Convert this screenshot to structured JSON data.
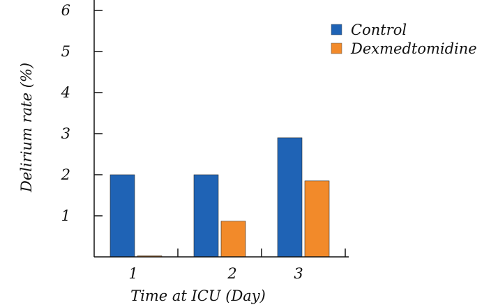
{
  "chart_data": {
    "type": "bar",
    "title": "",
    "xlabel": "Time at ICU (Day)",
    "ylabel": "Delirium rate (%)",
    "categories": [
      "1",
      "2",
      "3"
    ],
    "series": [
      {
        "name": "Control",
        "color": "#1f63b5",
        "values": [
          2.0,
          2.0,
          2.9
        ]
      },
      {
        "name": "Dexmedtomidine",
        "color": "#f28a2a",
        "values": [
          0.0,
          0.87,
          1.85
        ]
      }
    ],
    "ylim": [
      0,
      6
    ],
    "yticks": [
      "1",
      "2",
      "3",
      "4",
      "5",
      "6"
    ],
    "grid": false,
    "legend_position": "top-right"
  }
}
